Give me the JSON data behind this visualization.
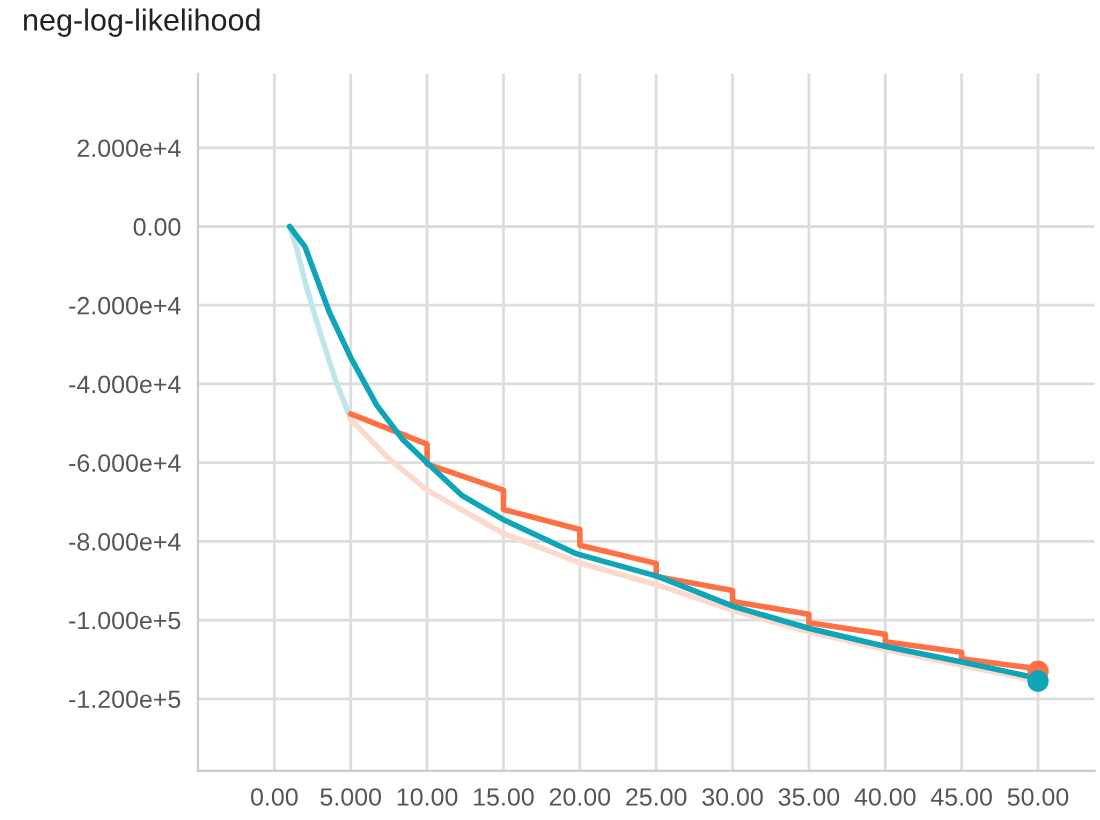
{
  "chart_data": {
    "type": "line",
    "title": "neg-log-likelihood",
    "xlim": [
      -5,
      53.7
    ],
    "ylim": [
      -138300,
      38800
    ],
    "xticks": [
      {
        "value": 0,
        "label": "0.00"
      },
      {
        "value": 5,
        "label": "5.000"
      },
      {
        "value": 10,
        "label": "10.00"
      },
      {
        "value": 15,
        "label": "15.00"
      },
      {
        "value": 20,
        "label": "20.00"
      },
      {
        "value": 25,
        "label": "25.00"
      },
      {
        "value": 30,
        "label": "30.00"
      },
      {
        "value": 35,
        "label": "35.00"
      },
      {
        "value": 40,
        "label": "40.00"
      },
      {
        "value": 45,
        "label": "45.00"
      },
      {
        "value": 50,
        "label": "50.00"
      }
    ],
    "yticks": [
      {
        "value": 20000,
        "label": "2.000e+4"
      },
      {
        "value": 0,
        "label": "0.00"
      },
      {
        "value": -20000,
        "label": "-2.000e+4"
      },
      {
        "value": -40000,
        "label": "-4.000e+4"
      },
      {
        "value": -60000,
        "label": "-6.000e+4"
      },
      {
        "value": -80000,
        "label": "-8.000e+4"
      },
      {
        "value": -100000,
        "label": "-1.000e+5"
      },
      {
        "value": -120000,
        "label": "-1.200e+5"
      }
    ],
    "grid": true,
    "series": [
      {
        "color": "#bfe7eb",
        "x": [
          1,
          1.5,
          2,
          3,
          4,
          5
        ],
        "values": [
          0,
          -6000,
          -14000,
          -27000,
          -39000,
          -49000
        ]
      },
      {
        "color": "#fcd9cd",
        "x": [
          5,
          7.5,
          10,
          15,
          20,
          25,
          30,
          35,
          40,
          45,
          50
        ],
        "values": [
          -49000,
          -59000,
          -67000,
          -78000,
          -85500,
          -91000,
          -97500,
          -103000,
          -107500,
          -111500,
          -115500
        ]
      },
      {
        "color": "#ff7043",
        "x": [
          5,
          10,
          10,
          15,
          15,
          20,
          20,
          25,
          25,
          30,
          30,
          35,
          35,
          40,
          40,
          45,
          45,
          50
        ],
        "values": [
          -47600,
          -55300,
          -60400,
          -67000,
          -71900,
          -77000,
          -81000,
          -85600,
          -88900,
          -92500,
          -95300,
          -98500,
          -100700,
          -103600,
          -105500,
          -108200,
          -109800,
          -112400
        ]
      },
      {
        "color": "#0ea5b8",
        "x": [
          1,
          2,
          3.6,
          5,
          6.7,
          8.4,
          10.1,
          12.3,
          15,
          19.8,
          25.1,
          30.1,
          35.1,
          40.1,
          45.1,
          50
        ],
        "values": [
          0,
          -5100,
          -21800,
          -33300,
          -45400,
          -54100,
          -60400,
          -68400,
          -74500,
          -83200,
          -88900,
          -96600,
          -102200,
          -106800,
          -110700,
          -114800
        ]
      },
      {
        "type": "scatter",
        "color": "#ff7043",
        "x": [
          50
        ],
        "values": [
          -113000
        ]
      },
      {
        "type": "scatter",
        "color": "#0ea5b8",
        "x": [
          50
        ],
        "values": [
          -115500
        ]
      }
    ]
  }
}
